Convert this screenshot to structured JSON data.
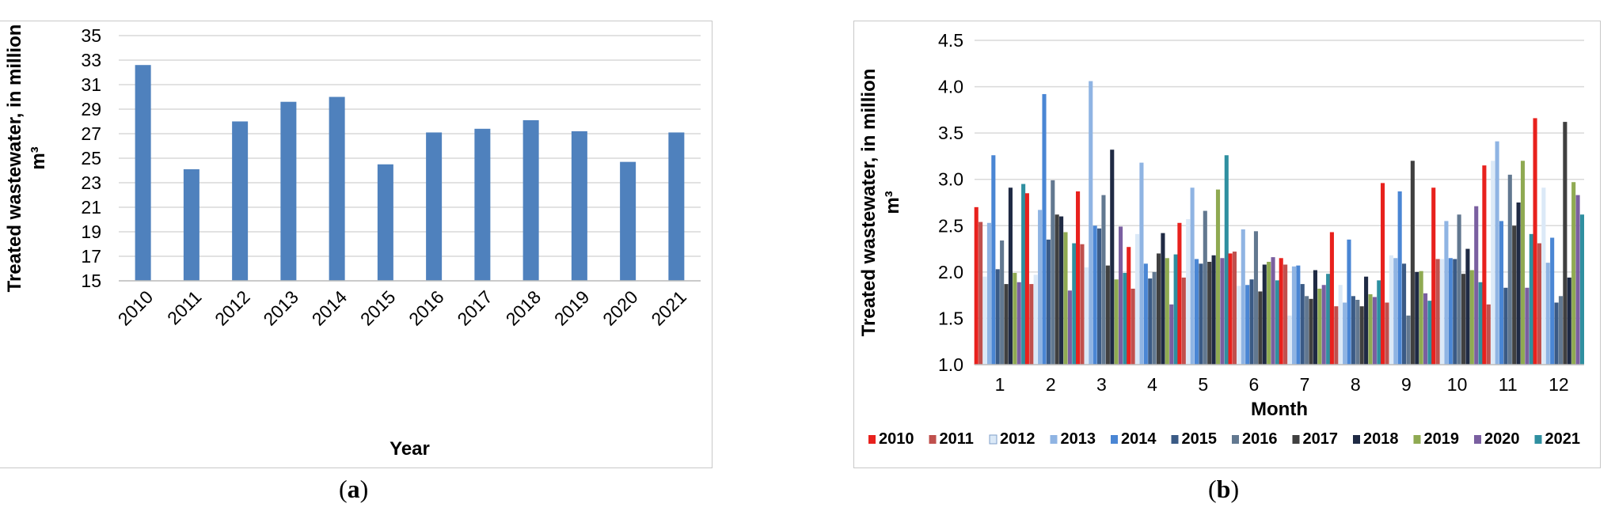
{
  "chart_data": [
    {
      "type": "bar",
      "categories": [
        "2010",
        "2011",
        "2012",
        "2013",
        "2014",
        "2015",
        "2016",
        "2017",
        "2018",
        "2019",
        "2020",
        "2021"
      ],
      "values": [
        32.6,
        24.1,
        28.0,
        29.6,
        30.0,
        24.5,
        27.1,
        27.4,
        28.1,
        27.2,
        24.7,
        27.1
      ],
      "xlabel": "Year",
      "ylabel": "Treated wastewater, in million m³",
      "ylim": [
        15,
        35
      ],
      "yticks": [
        "15",
        "17",
        "19",
        "21",
        "23",
        "25",
        "27",
        "29",
        "31",
        "33",
        "35"
      ],
      "grid": true,
      "colors": {
        "bar": "#4f81bd"
      }
    },
    {
      "type": "bar",
      "categories": [
        "1",
        "2",
        "3",
        "4",
        "5",
        "6",
        "7",
        "8",
        "9",
        "10",
        "11",
        "12"
      ],
      "xlabel": "Month",
      "ylabel": "Treated wastewater, in million m³",
      "ylim": [
        1.0,
        4.5
      ],
      "yticks": [
        "1.0",
        "1.5",
        "2.0",
        "2.5",
        "3.0",
        "3.5",
        "4.0",
        "4.5"
      ],
      "grid": true,
      "legend": "bottom",
      "series": [
        {
          "name": "2010",
          "color": "#e8211d",
          "values": [
            2.7,
            2.85,
            2.87,
            2.27,
            2.53,
            2.2,
            2.15,
            2.43,
            2.96,
            2.91,
            3.15,
            3.66
          ]
        },
        {
          "name": "2011",
          "color": "#c0504d",
          "values": [
            2.54,
            1.87,
            2.3,
            1.82,
            1.94,
            2.22,
            2.08,
            1.63,
            1.67,
            2.14,
            1.65,
            2.31
          ]
        },
        {
          "name": "2012",
          "color": "#dbe9f7",
          "values": [
            1.95,
            1.97,
            2.05,
            2.41,
            2.57,
            1.85,
            1.53,
            1.86,
            2.18,
            2.14,
            3.2,
            2.91
          ]
        },
        {
          "name": "2013",
          "color": "#8fb4e3",
          "values": [
            2.53,
            2.67,
            4.06,
            3.18,
            2.91,
            2.46,
            2.06,
            1.67,
            2.15,
            2.55,
            3.41,
            2.1
          ]
        },
        {
          "name": "2014",
          "color": "#4a86d4",
          "values": [
            3.26,
            3.92,
            2.5,
            2.09,
            2.14,
            1.86,
            2.07,
            2.35,
            2.87,
            2.15,
            2.55,
            2.37
          ]
        },
        {
          "name": "2015",
          "color": "#3a5a85",
          "values": [
            2.03,
            2.35,
            2.47,
            1.93,
            2.09,
            1.92,
            1.87,
            1.74,
            2.09,
            2.14,
            1.83,
            1.67
          ]
        },
        {
          "name": "2016",
          "color": "#627890",
          "values": [
            2.34,
            2.99,
            2.83,
            2.0,
            2.66,
            2.44,
            1.74,
            1.7,
            1.53,
            2.62,
            3.05,
            1.74
          ]
        },
        {
          "name": "2017",
          "color": "#404040",
          "values": [
            1.87,
            2.62,
            2.07,
            2.2,
            2.11,
            1.79,
            1.71,
            1.63,
            3.2,
            1.98,
            2.5,
            3.62
          ]
        },
        {
          "name": "2018",
          "color": "#1f2a44",
          "values": [
            2.91,
            2.6,
            3.32,
            2.42,
            2.18,
            2.08,
            2.02,
            1.95,
            2.0,
            2.25,
            2.75,
            1.94
          ]
        },
        {
          "name": "2019",
          "color": "#8faa52",
          "values": [
            1.99,
            2.43,
            1.92,
            2.15,
            2.89,
            2.11,
            1.82,
            1.76,
            2.01,
            2.02,
            3.2,
            2.97
          ]
        },
        {
          "name": "2020",
          "color": "#7a5fa0",
          "values": [
            1.89,
            1.8,
            2.49,
            1.65,
            2.15,
            2.16,
            1.86,
            1.73,
            1.77,
            2.71,
            1.83,
            2.83
          ]
        },
        {
          "name": "2021",
          "color": "#2f8fa0",
          "values": [
            2.95,
            2.31,
            1.99,
            2.19,
            3.26,
            1.91,
            1.98,
            1.91,
            1.69,
            1.89,
            2.41,
            2.62
          ]
        }
      ]
    }
  ],
  "captions": {
    "a_open": "(",
    "a_letter": "a",
    "a_close": ")",
    "b_open": "(",
    "b_letter": "b",
    "b_close": ")"
  }
}
